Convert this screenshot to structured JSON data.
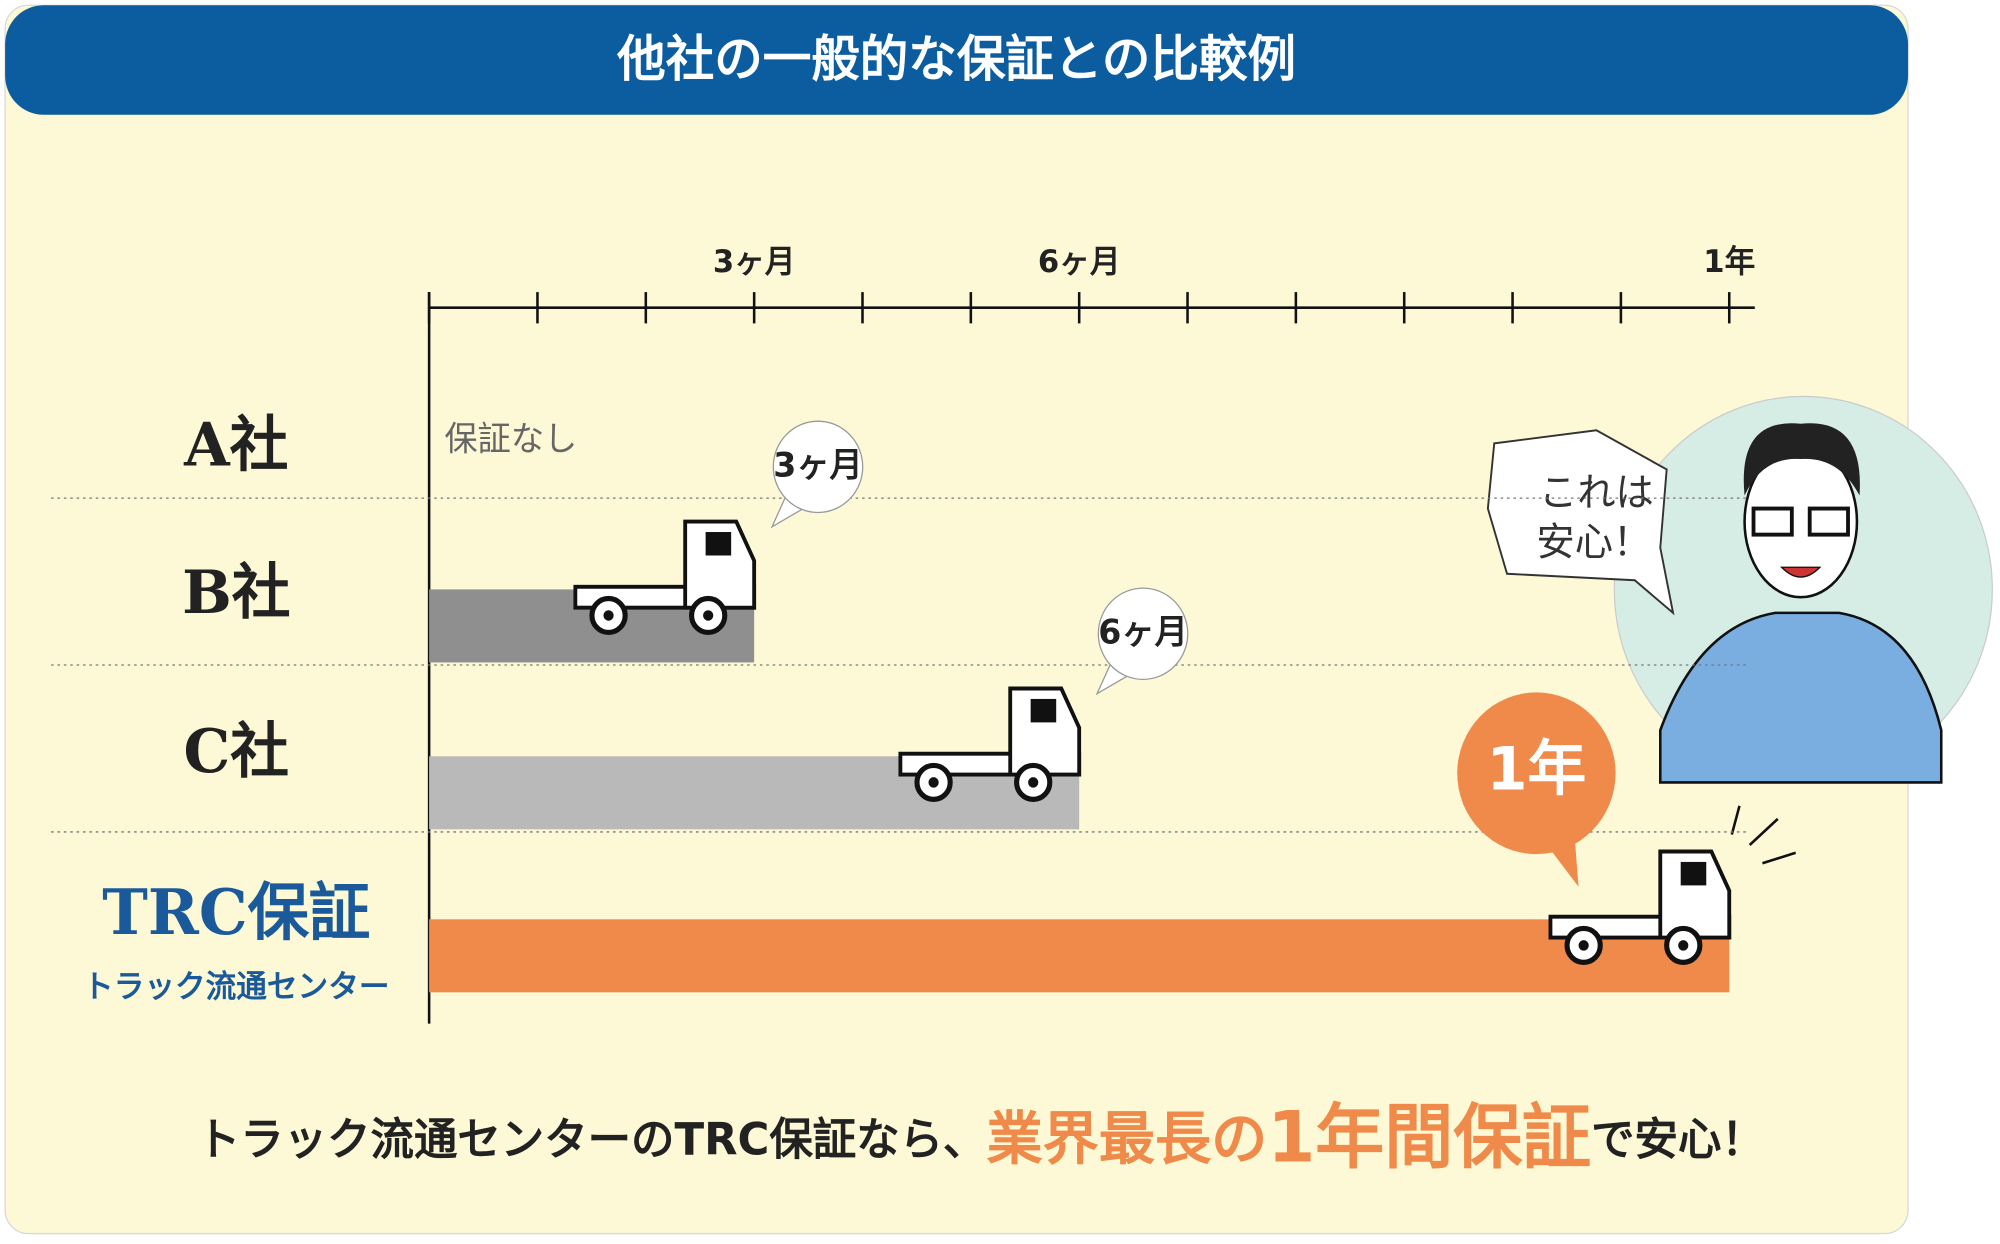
{
  "chart_data": {
    "type": "bar",
    "orientation": "horizontal",
    "title": "他社の一般的な保証との比較例",
    "categories": [
      "A社",
      "B社",
      "C社",
      "TRC保証"
    ],
    "logo_subtitle": "トラック流通センター",
    "values": [
      0,
      3,
      6,
      12
    ],
    "value_labels": [
      "保証なし",
      "3ヶ月",
      "6ヶ月",
      "1年"
    ],
    "colors": [
      "#8f8f8f",
      "#8f8f8f",
      "#b9b9b9",
      "#ef8a4a"
    ],
    "xlim": [
      0,
      12
    ],
    "xticks": [
      {
        "value": 3,
        "label": "3ヶ月"
      },
      {
        "value": 6,
        "label": "6ヶ月"
      },
      {
        "value": 12,
        "label": "1年"
      }
    ],
    "xminor_ticks": [
      0,
      1,
      2,
      4,
      5,
      7,
      8,
      9,
      10,
      11
    ],
    "speech": [
      "これは",
      "安心！"
    ],
    "footer": [
      "トラック流通センターのTRC保証なら、",
      "業界最長の",
      "1年間保証",
      "で安心！"
    ]
  }
}
